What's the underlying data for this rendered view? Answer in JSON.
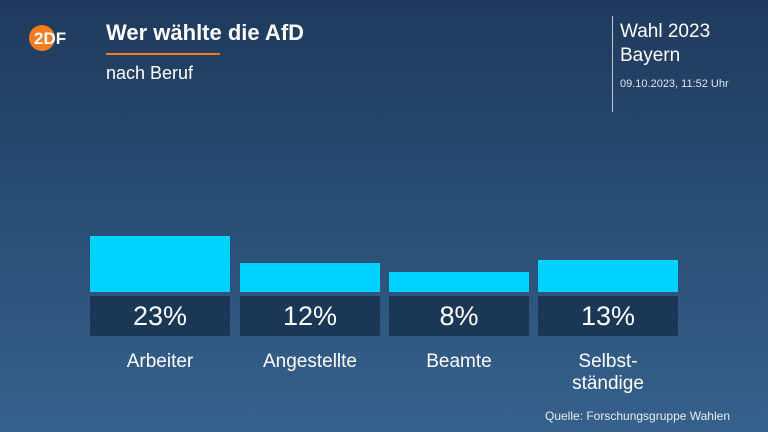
{
  "brand": {
    "logo_text": "2DF",
    "accent": "#f47b20"
  },
  "header": {
    "title": "Wer wählte die AfD",
    "subtitle": "nach Beruf",
    "election": "Wahl 2023\nBayern",
    "timestamp": "09.10.2023, 11:52 Uhr"
  },
  "source": "Quelle: Forschungsgruppe Wahlen",
  "colors": {
    "bar": "#00d2ff",
    "value_box": "#1b3756",
    "background_top": "#1f3a5c",
    "background_bottom": "#35618c"
  },
  "chart_data": {
    "type": "bar",
    "categories": [
      "Arbeiter",
      "Angestellte",
      "Beamte",
      "Selbst-\nständige"
    ],
    "values": [
      23,
      12,
      8,
      13
    ],
    "value_labels": [
      "23%",
      "12%",
      "8%",
      "13%"
    ],
    "unit": "%",
    "title": "Wer wählte die AfD",
    "subtitle": "nach Beruf",
    "grid": false
  }
}
